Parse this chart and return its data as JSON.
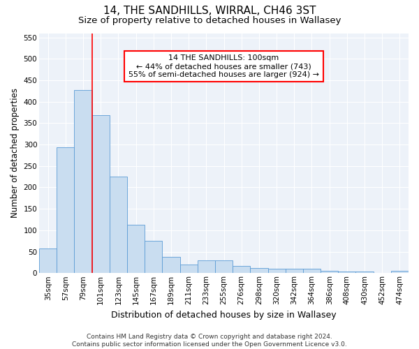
{
  "title": "14, THE SANDHILLS, WIRRAL, CH46 3ST",
  "subtitle": "Size of property relative to detached houses in Wallasey",
  "xlabel": "Distribution of detached houses by size in Wallasey",
  "ylabel": "Number of detached properties",
  "footnote": "Contains HM Land Registry data © Crown copyright and database right 2024.\nContains public sector information licensed under the Open Government Licence v3.0.",
  "categories": [
    "35sqm",
    "57sqm",
    "79sqm",
    "101sqm",
    "123sqm",
    "145sqm",
    "167sqm",
    "189sqm",
    "211sqm",
    "233sqm",
    "255sqm",
    "276sqm",
    "298sqm",
    "320sqm",
    "342sqm",
    "364sqm",
    "386sqm",
    "408sqm",
    "430sqm",
    "452sqm",
    "474sqm"
  ],
  "values": [
    57,
    293,
    428,
    368,
    225,
    113,
    76,
    38,
    20,
    29,
    29,
    17,
    12,
    10,
    10,
    10,
    5,
    3,
    4,
    0,
    5
  ],
  "bar_color": "#c9ddf0",
  "bar_edge_color": "#5b9bd5",
  "annotation_box_text": "14 THE SANDHILLS: 100sqm\n← 44% of detached houses are smaller (743)\n55% of semi-detached houses are larger (924) →",
  "annotation_box_color": "red",
  "annotation_box_fill": "white",
  "property_line_x": 3.0,
  "ylim": [
    0,
    560
  ],
  "yticks": [
    0,
    50,
    100,
    150,
    200,
    250,
    300,
    350,
    400,
    450,
    500,
    550
  ],
  "background_color": "#edf2f9",
  "grid_color": "white",
  "title_fontsize": 11,
  "subtitle_fontsize": 9.5,
  "xlabel_fontsize": 9,
  "ylabel_fontsize": 8.5,
  "tick_fontsize": 7.5,
  "annotation_fontsize": 8,
  "footnote_fontsize": 6.5
}
